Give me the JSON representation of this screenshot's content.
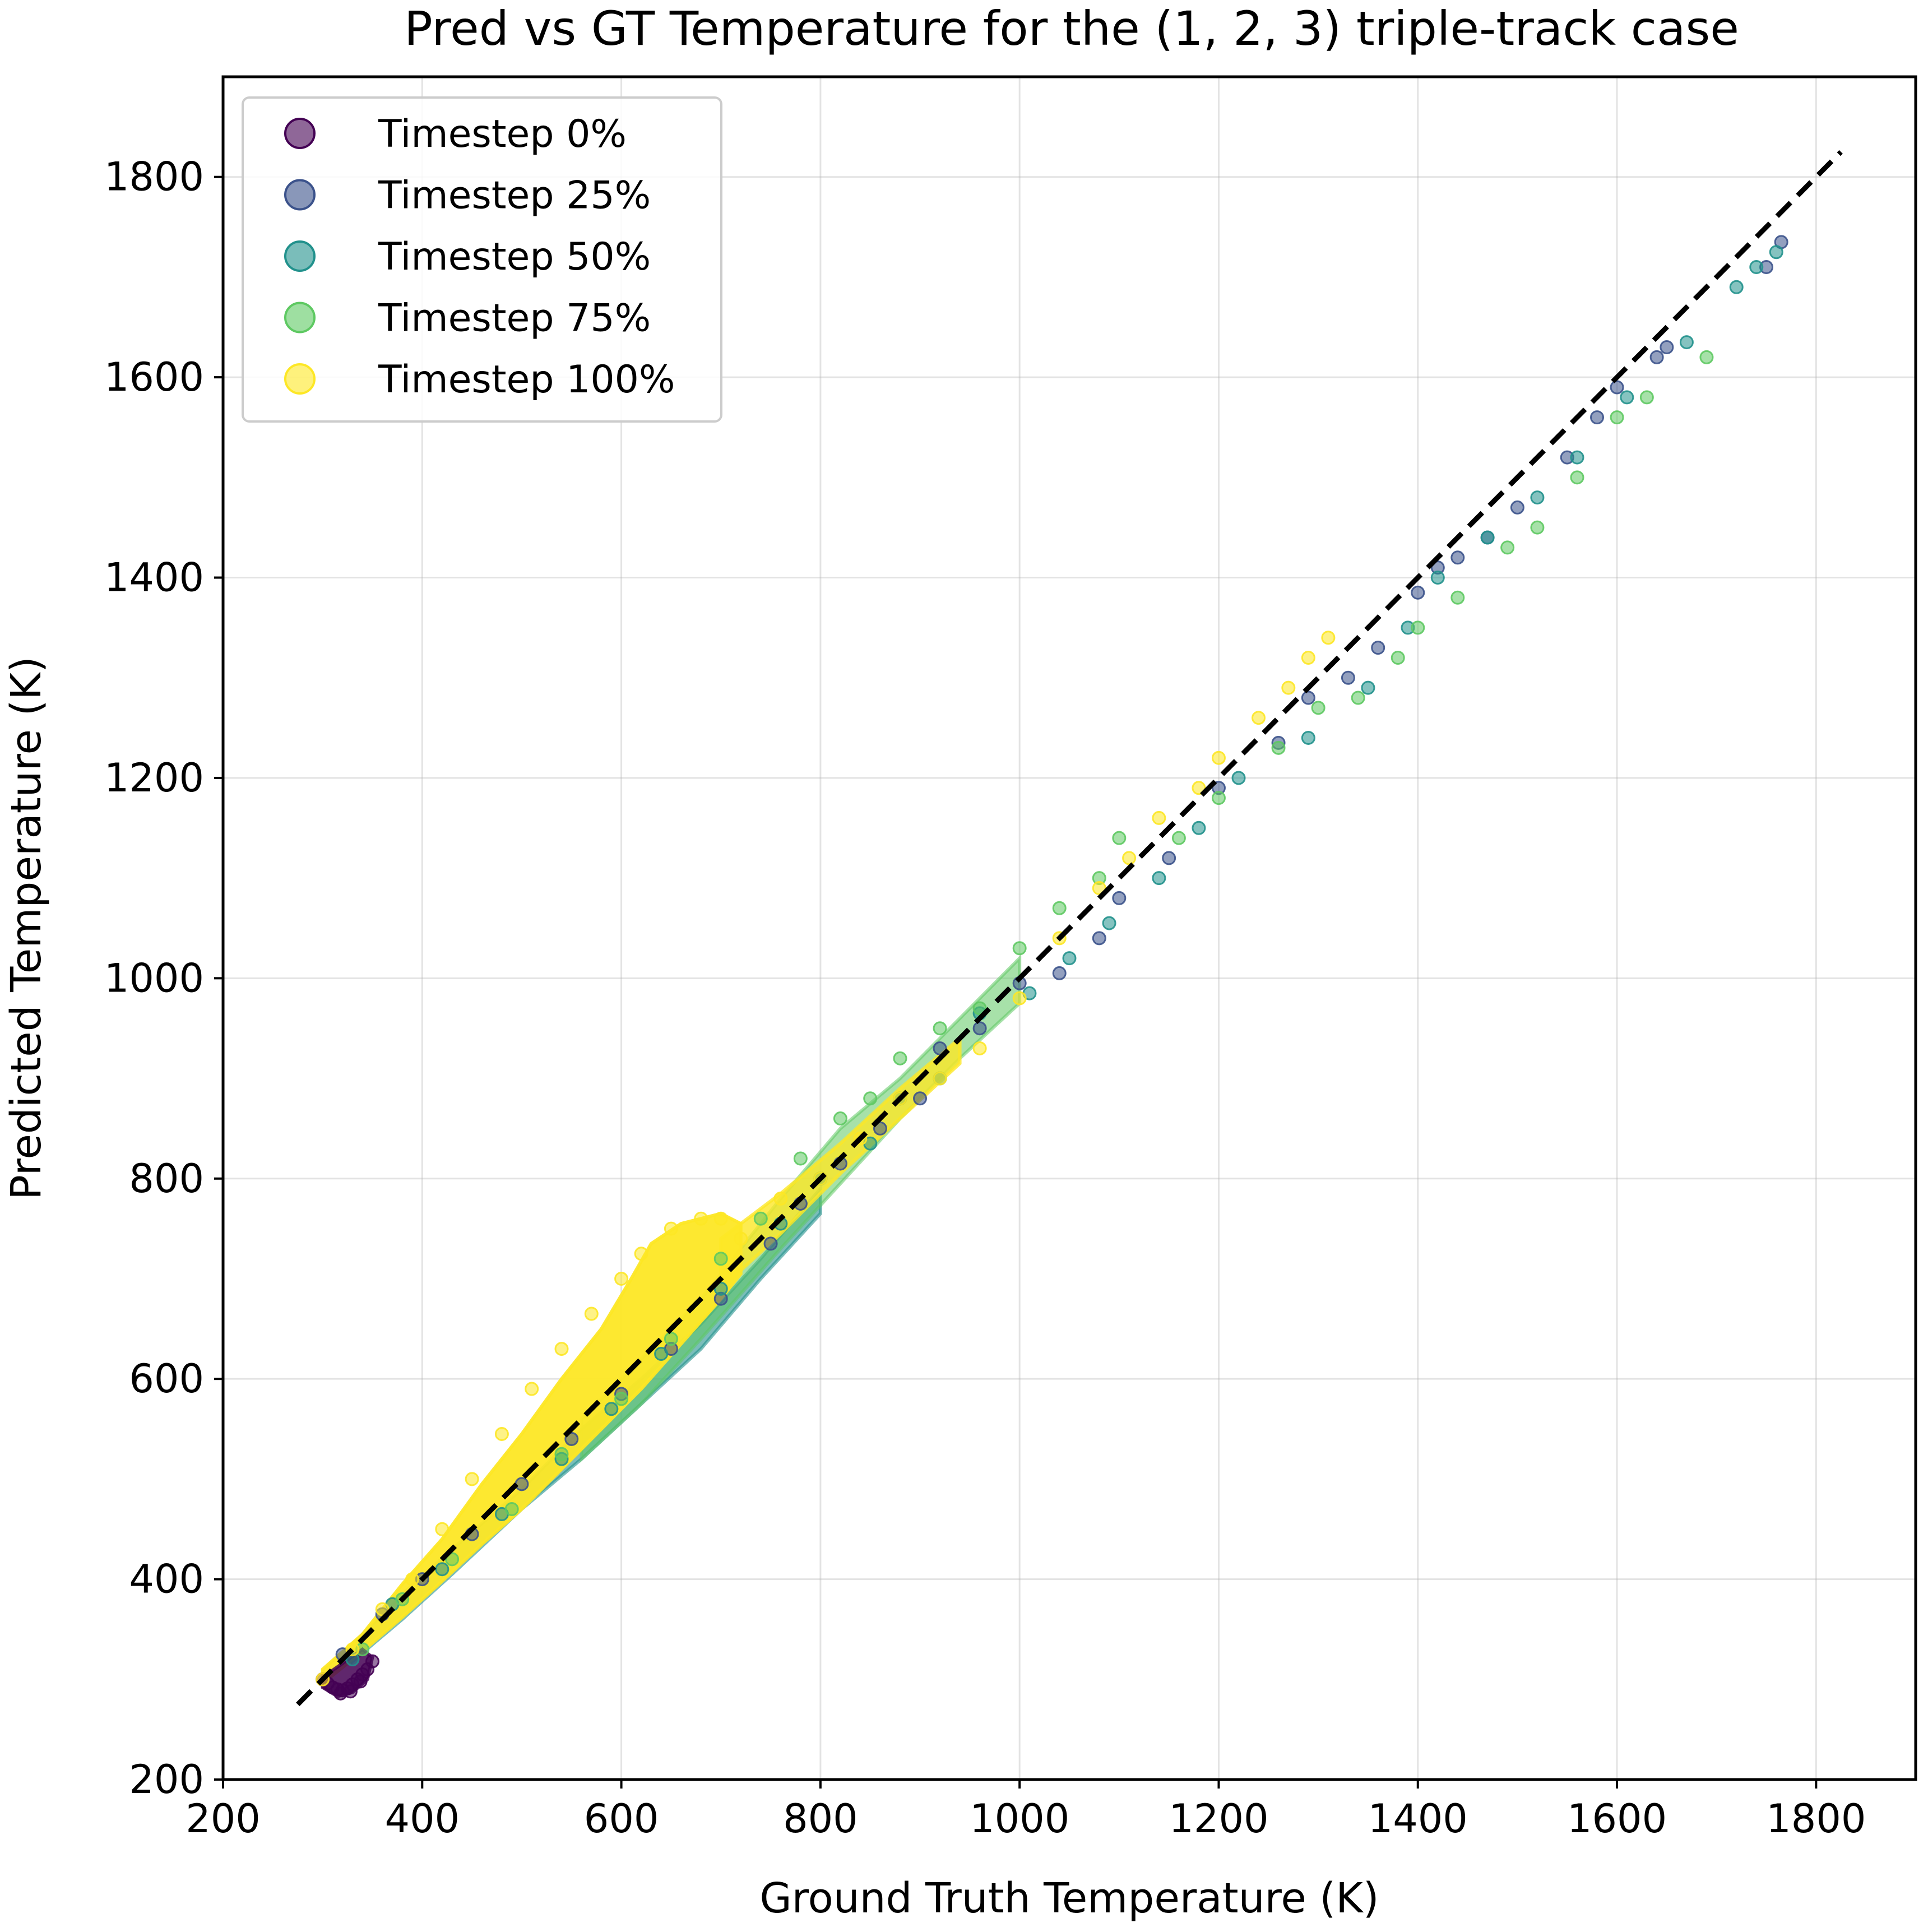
{
  "chart_data": {
    "type": "scatter",
    "title": "Pred vs GT Temperature for the (1, 2, 3) triple-track case",
    "xlabel": "Ground Truth Temperature (K)",
    "ylabel": "Predicted Temperature (K)",
    "xlim": [
      200,
      1900
    ],
    "ylim": [
      200,
      1900
    ],
    "xticks": [
      200,
      400,
      600,
      800,
      1000,
      1200,
      1400,
      1600,
      1800
    ],
    "yticks": [
      200,
      400,
      600,
      800,
      1000,
      1200,
      1400,
      1600,
      1800
    ],
    "grid": true,
    "legend_position": "top-left",
    "reference_line": {
      "style": "dashed",
      "color": "#000000",
      "x": [
        275,
        1825
      ],
      "y": [
        275,
        1825
      ]
    },
    "series": [
      {
        "name": "Timestep 0%",
        "color": "#440154",
        "points": [
          [
            300,
            300
          ],
          [
            305,
            296
          ],
          [
            310,
            292
          ],
          [
            315,
            290
          ],
          [
            320,
            289
          ],
          [
            325,
            291
          ],
          [
            330,
            295
          ],
          [
            335,
            300
          ],
          [
            340,
            305
          ],
          [
            345,
            310
          ],
          [
            350,
            318
          ],
          [
            318,
            286
          ],
          [
            328,
            288
          ],
          [
            338,
            298
          ]
        ]
      },
      {
        "name": "Timestep 25%",
        "color": "#3b528b",
        "points": [
          [
            320,
            325
          ],
          [
            360,
            365
          ],
          [
            400,
            400
          ],
          [
            450,
            445
          ],
          [
            500,
            495
          ],
          [
            550,
            540
          ],
          [
            600,
            585
          ],
          [
            650,
            630
          ],
          [
            700,
            680
          ],
          [
            750,
            735
          ],
          [
            780,
            775
          ],
          [
            820,
            815
          ],
          [
            860,
            850
          ],
          [
            900,
            880
          ],
          [
            920,
            930
          ],
          [
            960,
            950
          ],
          [
            1000,
            995
          ],
          [
            1040,
            1005
          ],
          [
            1080,
            1040
          ],
          [
            1100,
            1080
          ],
          [
            1150,
            1120
          ],
          [
            1200,
            1190
          ],
          [
            1260,
            1235
          ],
          [
            1290,
            1280
          ],
          [
            1330,
            1300
          ],
          [
            1360,
            1330
          ],
          [
            1400,
            1385
          ],
          [
            1420,
            1410
          ],
          [
            1440,
            1420
          ],
          [
            1470,
            1440
          ],
          [
            1500,
            1470
          ],
          [
            1550,
            1520
          ],
          [
            1580,
            1560
          ],
          [
            1600,
            1590
          ],
          [
            1640,
            1620
          ],
          [
            1650,
            1630
          ],
          [
            1750,
            1710
          ],
          [
            1765,
            1735
          ]
        ]
      },
      {
        "name": "Timestep 50%",
        "color": "#21918c",
        "points": [
          [
            330,
            320
          ],
          [
            370,
            375
          ],
          [
            420,
            410
          ],
          [
            480,
            465
          ],
          [
            540,
            520
          ],
          [
            590,
            570
          ],
          [
            640,
            625
          ],
          [
            700,
            690
          ],
          [
            760,
            755
          ],
          [
            800,
            800
          ],
          [
            850,
            835
          ],
          [
            880,
            880
          ],
          [
            920,
            900
          ],
          [
            960,
            965
          ],
          [
            1010,
            985
          ],
          [
            1050,
            1020
          ],
          [
            1090,
            1055
          ],
          [
            1140,
            1100
          ],
          [
            1180,
            1150
          ],
          [
            1220,
            1200
          ],
          [
            1290,
            1240
          ],
          [
            1350,
            1290
          ],
          [
            1390,
            1350
          ],
          [
            1420,
            1400
          ],
          [
            1470,
            1440
          ],
          [
            1520,
            1480
          ],
          [
            1560,
            1520
          ],
          [
            1610,
            1580
          ],
          [
            1670,
            1635
          ],
          [
            1720,
            1690
          ],
          [
            1740,
            1710
          ],
          [
            1760,
            1725
          ]
        ]
      },
      {
        "name": "Timestep 75%",
        "color": "#5ec962",
        "points": [
          [
            340,
            330
          ],
          [
            380,
            380
          ],
          [
            430,
            420
          ],
          [
            490,
            470
          ],
          [
            540,
            525
          ],
          [
            600,
            580
          ],
          [
            650,
            640
          ],
          [
            700,
            720
          ],
          [
            740,
            760
          ],
          [
            780,
            820
          ],
          [
            820,
            860
          ],
          [
            850,
            880
          ],
          [
            880,
            920
          ],
          [
            920,
            950
          ],
          [
            960,
            970
          ],
          [
            1000,
            1030
          ],
          [
            1040,
            1070
          ],
          [
            1080,
            1100
          ],
          [
            1100,
            1140
          ],
          [
            1160,
            1140
          ],
          [
            1200,
            1180
          ],
          [
            1260,
            1230
          ],
          [
            1300,
            1270
          ],
          [
            1340,
            1280
          ],
          [
            1380,
            1320
          ],
          [
            1400,
            1350
          ],
          [
            1440,
            1380
          ],
          [
            1490,
            1430
          ],
          [
            1520,
            1450
          ],
          [
            1560,
            1500
          ],
          [
            1600,
            1560
          ],
          [
            1630,
            1580
          ],
          [
            1690,
            1620
          ]
        ]
      },
      {
        "name": "Timestep 100%",
        "color": "#fde725",
        "points": [
          [
            300,
            300
          ],
          [
            330,
            330
          ],
          [
            360,
            370
          ],
          [
            390,
            400
          ],
          [
            420,
            450
          ],
          [
            450,
            500
          ],
          [
            480,
            545
          ],
          [
            510,
            590
          ],
          [
            540,
            630
          ],
          [
            570,
            665
          ],
          [
            600,
            700
          ],
          [
            620,
            725
          ],
          [
            650,
            750
          ],
          [
            680,
            760
          ],
          [
            700,
            760
          ],
          [
            720,
            740
          ],
          [
            760,
            780
          ],
          [
            800,
            800
          ],
          [
            840,
            840
          ],
          [
            880,
            880
          ],
          [
            920,
            900
          ],
          [
            960,
            930
          ],
          [
            1000,
            980
          ],
          [
            1040,
            1040
          ],
          [
            1080,
            1090
          ],
          [
            1110,
            1120
          ],
          [
            1140,
            1160
          ],
          [
            1180,
            1190
          ],
          [
            1200,
            1220
          ],
          [
            1240,
            1260
          ],
          [
            1270,
            1290
          ],
          [
            1290,
            1320
          ],
          [
            1310,
            1340
          ]
        ]
      }
    ]
  }
}
